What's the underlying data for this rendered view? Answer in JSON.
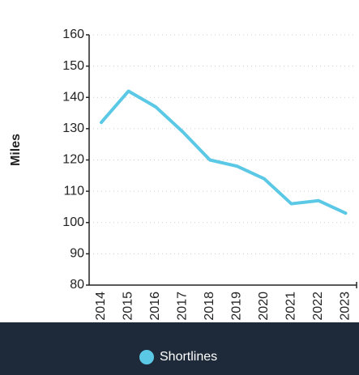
{
  "chart_data": {
    "type": "line",
    "y_label": "Miles",
    "categories": [
      "2014",
      "2015",
      "2016",
      "2017",
      "2018",
      "2019",
      "2020",
      "2021",
      "2022",
      "2023"
    ],
    "series": [
      {
        "name": "Shortlines",
        "color": "#5bc8e6",
        "values": [
          132,
          142,
          137,
          129,
          120,
          118,
          114,
          106,
          107,
          103
        ]
      }
    ],
    "ylim": [
      80,
      160
    ],
    "yticks": [
      80,
      90,
      100,
      110,
      120,
      130,
      140,
      150,
      160
    ],
    "grid": true,
    "legend": "bottom"
  }
}
